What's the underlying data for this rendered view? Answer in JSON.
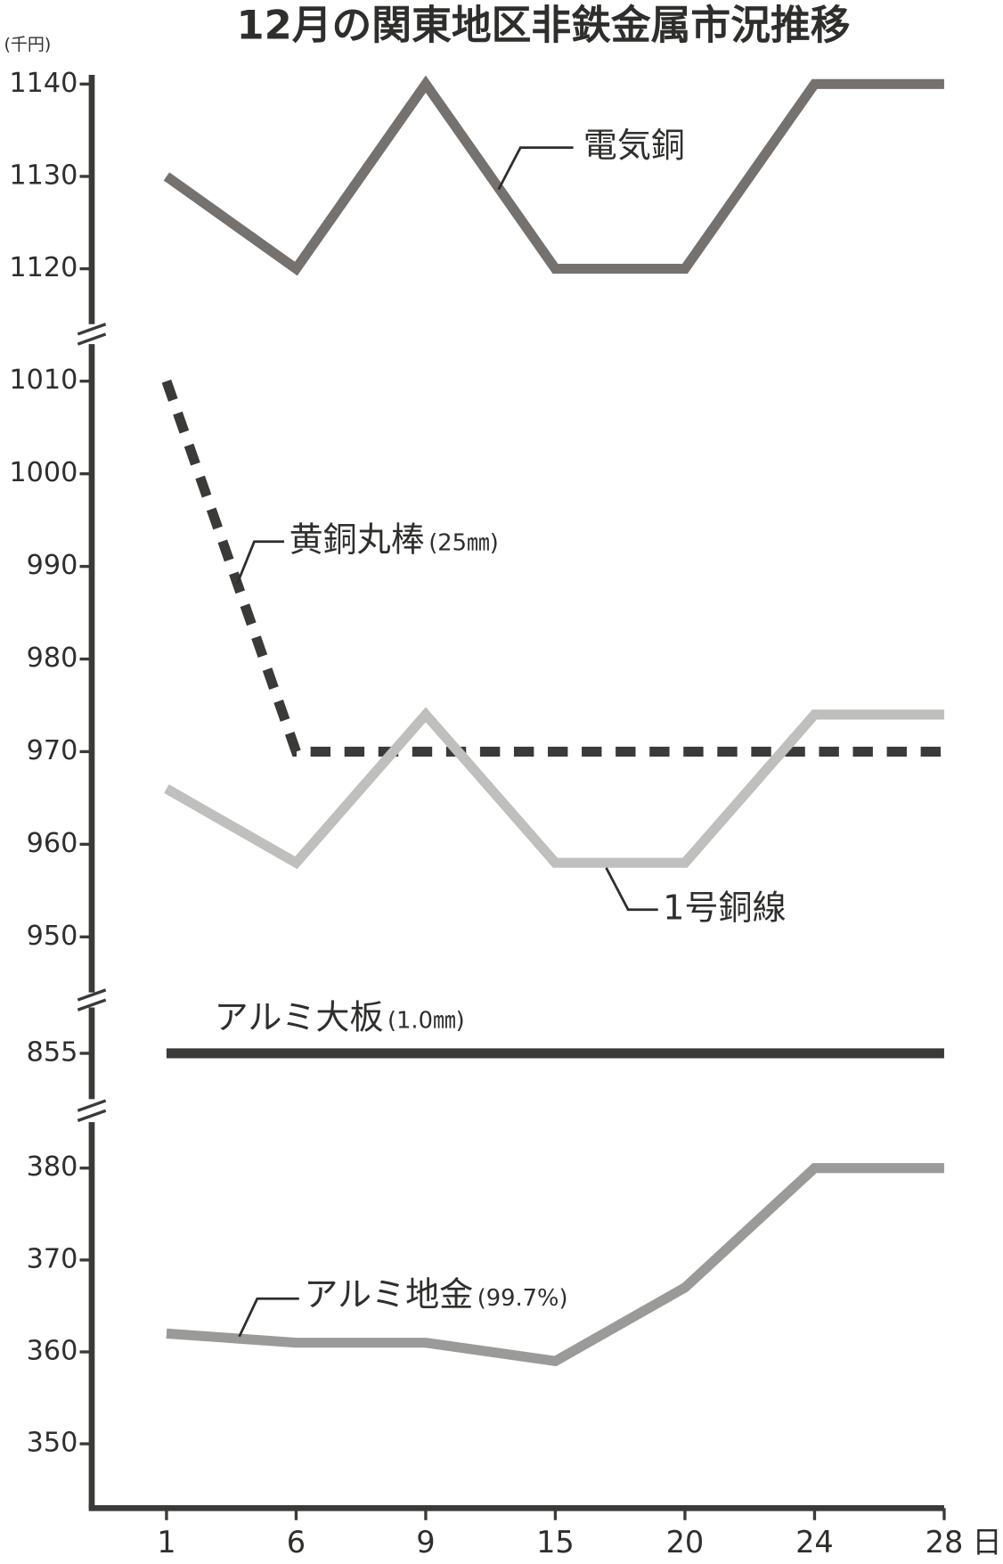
{
  "chart_data": [
    {
      "type": "line",
      "title": "12月の関東地区非鉄金属市況推移",
      "y_label": "(千円)",
      "ylim": [
        1114,
        1141
      ],
      "yticks": [
        1120,
        1130,
        1140
      ],
      "series": [
        {
          "name": "電気銅",
          "color": "#75716e",
          "values": [
            1130,
            1120,
            1140,
            1120,
            1120,
            1140,
            1140
          ]
        }
      ]
    },
    {
      "type": "line",
      "ylim": [
        944,
        1014
      ],
      "yticks": [
        950,
        960,
        970,
        980,
        990,
        1000,
        1010
      ],
      "series": [
        {
          "name": "黄銅丸棒",
          "note": "(25㎜)",
          "color": "#3a3a38",
          "dashed": true,
          "values": [
            1010,
            970,
            970,
            970,
            970,
            970,
            970
          ]
        },
        {
          "name": "1号銅線",
          "color": "#bfbfbd",
          "values": [
            966,
            958,
            974,
            958,
            958,
            974,
            974
          ]
        }
      ]
    },
    {
      "type": "line",
      "ylim": [
        850,
        860
      ],
      "yticks": [
        855
      ],
      "series": [
        {
          "name": "アルミ大板",
          "note": "(1.0㎜)",
          "color": "#3a3a38",
          "values": [
            855,
            855,
            855,
            855,
            855,
            855,
            855
          ]
        }
      ]
    },
    {
      "type": "line",
      "ylim": [
        343,
        385
      ],
      "yticks": [
        350,
        360,
        370,
        380
      ],
      "categories": [
        "1",
        "6",
        "9",
        "15",
        "20",
        "24",
        "28"
      ],
      "x_label": "日",
      "series": [
        {
          "name": "アルミ地金",
          "note": "(99.7%)",
          "color": "#9a9a98",
          "values": [
            362,
            361,
            361,
            359,
            367,
            380,
            380
          ]
        }
      ]
    }
  ]
}
